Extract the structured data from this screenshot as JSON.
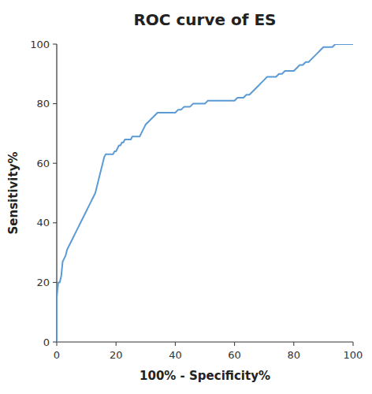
{
  "chart_data": {
    "type": "line",
    "title": "ROC curve of ES",
    "xlabel": "100% - Specificity%",
    "ylabel": "Sensitivity%",
    "color": "#5b9bd5",
    "xlim": [
      0,
      100
    ],
    "ylim": [
      0,
      100
    ],
    "xticks": [
      0,
      20,
      40,
      60,
      80,
      100
    ],
    "yticks": [
      0,
      20,
      40,
      60,
      80,
      100
    ],
    "grid": false,
    "x": [
      0,
      0,
      0.5,
      1.0,
      1.5,
      2.0,
      2.5,
      3.0,
      3.5,
      4.0,
      4.5,
      5.0,
      5.5,
      6.0,
      6.5,
      7.0,
      7.5,
      8.0,
      8.5,
      9.0,
      9.5,
      10.0,
      10.5,
      11.0,
      11.5,
      12.0,
      12.5,
      13.0,
      13.5,
      14.0,
      14.5,
      15.0,
      15.5,
      16.0,
      16.5,
      17.0,
      17.5,
      18.0,
      18.5,
      19.0,
      19.5,
      20.0,
      20.5,
      21.0,
      21.5,
      22.0,
      22.5,
      23.0,
      23.5,
      24.0,
      24.5,
      25.0,
      25.5,
      26.0,
      26.5,
      27.0,
      27.5,
      28.0,
      28.5,
      29.0,
      29.5,
      30.0,
      31.0,
      32.0,
      33.0,
      34.0,
      35.0,
      36.0,
      37.0,
      38.0,
      39.0,
      40.0,
      41.0,
      42.0,
      43.0,
      44.0,
      45.0,
      46.0,
      47.0,
      48.0,
      49.0,
      50.0,
      51.0,
      52.0,
      53.0,
      54.0,
      55.0,
      56.0,
      57.0,
      58.0,
      59.0,
      60.0,
      61.0,
      62.0,
      63.0,
      64.0,
      65.0,
      66.0,
      67.0,
      68.0,
      69.0,
      70.0,
      71.0,
      72.0,
      73.0,
      74.0,
      75.0,
      76.0,
      77.0,
      78.0,
      79.0,
      80.0,
      81.0,
      82.0,
      83.0,
      84.0,
      85.0,
      86.0,
      87.0,
      88.0,
      89.0,
      90.0,
      91.0,
      92.0,
      93.0,
      94.0,
      95.0,
      96.0,
      97.0,
      98.0,
      99.0,
      100.0
    ],
    "values": [
      0,
      15,
      20,
      20,
      22,
      27,
      28,
      29,
      31,
      32,
      33,
      34,
      35,
      36,
      37,
      38,
      39,
      40,
      41,
      42,
      43,
      44,
      45,
      46,
      47,
      48,
      49,
      50,
      52,
      54,
      56,
      58,
      60,
      62,
      63,
      63,
      63,
      63,
      63,
      63,
      64,
      64,
      65,
      66,
      66,
      67,
      67,
      68,
      68,
      68,
      68,
      68,
      69,
      69,
      69,
      69,
      69,
      69,
      70,
      71,
      72,
      73,
      74,
      75,
      76,
      77,
      77,
      77,
      77,
      77,
      77,
      77,
      78,
      78,
      79,
      79,
      79,
      80,
      80,
      80,
      80,
      80,
      81,
      81,
      81,
      81,
      81,
      81,
      81,
      81,
      81,
      81,
      82,
      82,
      82,
      83,
      83,
      84,
      85,
      86,
      87,
      88,
      89,
      89,
      89,
      89,
      90,
      90,
      91,
      91,
      91,
      91,
      92,
      93,
      93,
      94,
      94,
      95,
      96,
      97,
      98,
      99,
      99,
      99,
      99,
      100,
      100,
      100,
      100,
      100,
      100,
      100
    ]
  }
}
